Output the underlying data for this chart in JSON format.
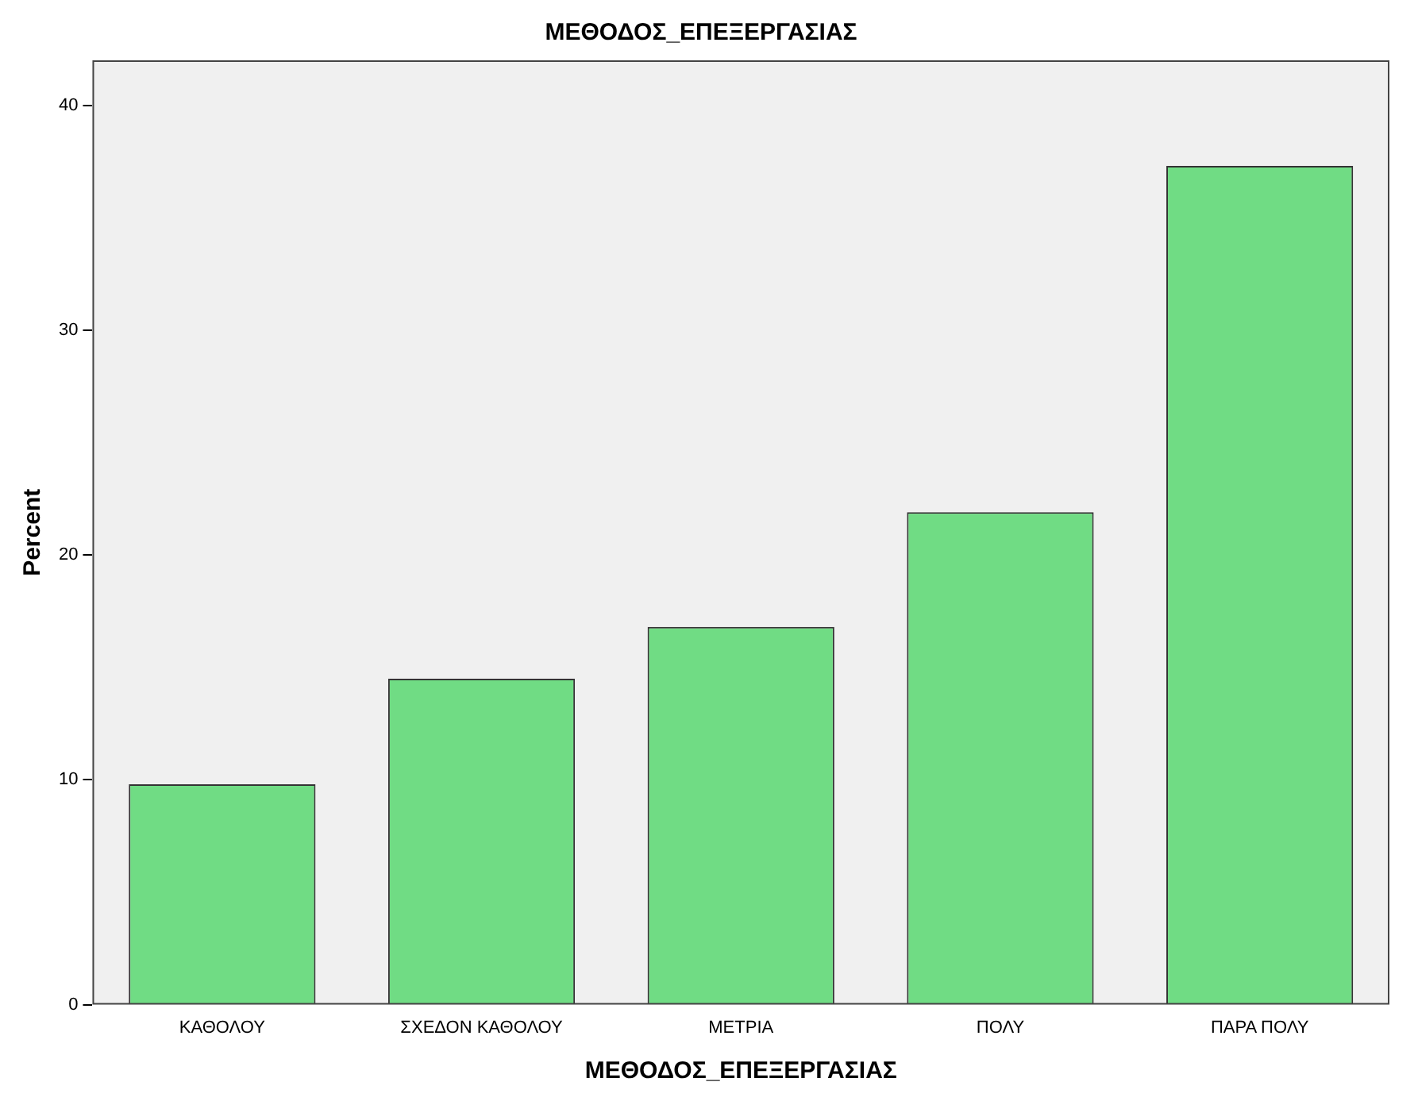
{
  "chart_data": {
    "type": "bar",
    "title": "ΜΕΘΟΔΟΣ_ΕΠΕΞΕΡΓΑΣΙΑΣ",
    "xlabel": "ΜΕΘΟΔΟΣ_ΕΠΕΞΕΡΓΑΣΙΑΣ",
    "ylabel": "Percent",
    "categories": [
      "ΚΑΘΟΛΟΥ",
      "ΣΧΕΔΟΝ ΚΑΘΟΛΟΥ",
      "ΜΕΤΡΙΑ",
      "ΠΟΛΥ",
      "ΠΑΡΑ ΠΟΛΥ"
    ],
    "values": [
      9.8,
      14.5,
      16.8,
      21.9,
      37.3
    ],
    "color": "#70dc84",
    "ylim": [
      0,
      42
    ],
    "yticks": [
      0,
      10,
      20,
      30,
      40
    ],
    "grid": false,
    "legend": false
  }
}
